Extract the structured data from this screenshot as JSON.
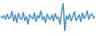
{
  "chart_data": {
    "type": "line",
    "color": "#3d8fd6",
    "tick_labels": false,
    "grid": false,
    "xlim": [
      0,
      59
    ],
    "ylim": [
      0,
      100
    ],
    "x": [
      0,
      1,
      2,
      3,
      4,
      5,
      6,
      7,
      8,
      9,
      10,
      11,
      12,
      13,
      14,
      15,
      16,
      17,
      18,
      19,
      20,
      21,
      22,
      23,
      24,
      25,
      26,
      27,
      28,
      29,
      30,
      31,
      32,
      33,
      34,
      35,
      36,
      37,
      38,
      39,
      40,
      41,
      42,
      43,
      44,
      45,
      46,
      47,
      48,
      49,
      50,
      51,
      52,
      53,
      54,
      55,
      56,
      57,
      58,
      59
    ],
    "values": [
      55,
      50,
      58,
      45,
      62,
      48,
      52,
      70,
      40,
      60,
      35,
      65,
      50,
      45,
      68,
      42,
      55,
      30,
      60,
      52,
      48,
      66,
      38,
      58,
      50,
      72,
      44,
      55,
      35,
      62,
      50,
      46,
      60,
      40,
      64,
      48,
      52,
      30,
      68,
      95,
      10,
      58,
      45,
      62,
      40,
      55,
      70,
      42,
      50,
      60,
      38,
      66,
      48,
      55,
      72,
      45,
      58,
      62,
      50,
      55
    ]
  }
}
